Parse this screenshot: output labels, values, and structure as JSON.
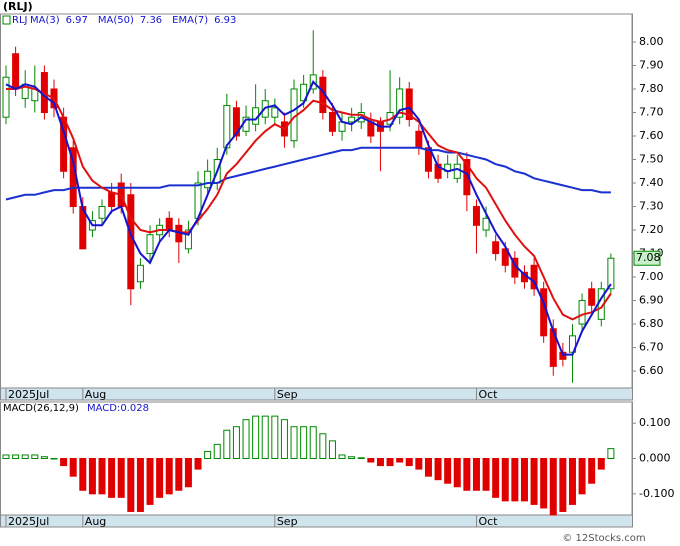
{
  "chart_data": [
    {
      "type": "candlestick",
      "title": "(RLJ)",
      "symbol": "RLJ",
      "open": [
        7.68,
        7.95,
        7.76,
        7.75,
        7.87,
        7.8,
        7.68,
        7.55,
        7.3,
        7.2,
        7.25,
        7.36,
        7.4,
        7.35,
        6.98,
        7.1,
        7.18,
        7.25,
        7.22,
        7.12,
        7.25,
        7.38,
        7.4,
        7.55,
        7.72,
        7.62,
        7.65,
        7.68,
        7.68,
        7.66,
        7.58,
        7.75,
        7.8,
        7.85,
        7.7,
        7.62,
        7.66,
        7.66,
        7.66,
        7.66,
        7.65,
        7.68,
        7.8,
        7.62,
        7.55,
        7.48,
        7.45,
        7.42,
        7.5,
        7.3,
        7.2,
        7.15,
        7.12,
        7.08,
        7.02,
        7.05,
        6.95,
        6.78,
        6.68,
        6.68,
        6.8,
        6.95,
        6.82,
        6.95
      ],
      "high": [
        7.9,
        7.98,
        7.88,
        7.9,
        7.9,
        7.84,
        7.72,
        7.58,
        7.34,
        7.28,
        7.33,
        7.4,
        7.44,
        7.4,
        7.08,
        7.22,
        7.25,
        7.28,
        7.25,
        7.24,
        7.45,
        7.5,
        7.55,
        7.78,
        7.75,
        7.73,
        7.82,
        7.8,
        7.76,
        7.7,
        7.84,
        7.86,
        8.05,
        7.88,
        7.74,
        7.7,
        7.72,
        7.74,
        7.7,
        7.68,
        7.88,
        7.85,
        7.83,
        7.65,
        7.58,
        7.52,
        7.52,
        7.52,
        7.53,
        7.33,
        7.3,
        7.18,
        7.15,
        7.11,
        7.05,
        7.08,
        6.98,
        6.82,
        6.72,
        6.8,
        6.93,
        6.98,
        6.98,
        7.1
      ],
      "low": [
        7.65,
        7.77,
        7.72,
        7.7,
        7.67,
        7.68,
        7.42,
        7.27,
        7.12,
        7.17,
        7.22,
        7.27,
        7.27,
        6.88,
        6.95,
        7.06,
        7.15,
        7.17,
        7.06,
        7.1,
        7.22,
        7.35,
        7.37,
        7.52,
        7.58,
        7.6,
        7.62,
        7.65,
        7.65,
        7.55,
        7.55,
        7.72,
        7.78,
        7.67,
        7.6,
        7.58,
        7.62,
        7.63,
        7.57,
        7.45,
        7.62,
        7.65,
        7.64,
        7.52,
        7.42,
        7.4,
        7.42,
        7.4,
        7.28,
        7.1,
        7.17,
        7.07,
        7.02,
        6.97,
        6.95,
        6.92,
        6.72,
        6.58,
        6.62,
        6.55,
        6.77,
        6.85,
        6.79,
        6.93
      ],
      "close": [
        7.85,
        7.8,
        7.82,
        7.8,
        7.7,
        7.72,
        7.45,
        7.3,
        7.12,
        7.24,
        7.3,
        7.3,
        7.3,
        6.95,
        7.05,
        7.18,
        7.22,
        7.2,
        7.15,
        7.2,
        7.4,
        7.45,
        7.5,
        7.73,
        7.6,
        7.68,
        7.72,
        7.75,
        7.72,
        7.6,
        7.8,
        7.82,
        7.86,
        7.7,
        7.62,
        7.66,
        7.68,
        7.7,
        7.6,
        7.62,
        7.7,
        7.8,
        7.67,
        7.55,
        7.45,
        7.42,
        7.48,
        7.48,
        7.35,
        7.22,
        7.25,
        7.1,
        7.05,
        7.0,
        6.98,
        6.95,
        6.75,
        6.62,
        6.65,
        6.75,
        6.9,
        6.88,
        6.95,
        7.08
      ],
      "series": [
        {
          "name": "MA(3)",
          "legend_value": 6.97,
          "color": "#1515d0",
          "values": [
            7.82,
            7.8,
            7.82,
            7.81,
            7.77,
            7.74,
            7.62,
            7.49,
            7.29,
            7.22,
            7.22,
            7.28,
            7.3,
            7.18,
            7.1,
            7.06,
            7.15,
            7.2,
            7.19,
            7.18,
            7.25,
            7.35,
            7.45,
            7.56,
            7.61,
            7.67,
            7.67,
            7.72,
            7.73,
            7.69,
            7.71,
            7.74,
            7.83,
            7.79,
            7.73,
            7.66,
            7.65,
            7.68,
            7.66,
            7.64,
            7.64,
            7.71,
            7.72,
            7.67,
            7.56,
            7.47,
            7.45,
            7.46,
            7.44,
            7.35,
            7.27,
            7.19,
            7.13,
            7.05,
            7.01,
            6.98,
            6.89,
            6.77,
            6.67,
            6.67,
            6.77,
            6.84,
            6.91,
            6.97
          ]
        },
        {
          "name": "MA(50)",
          "legend_value": 7.36,
          "color": "#1a30d0",
          "values": [
            7.33,
            7.34,
            7.35,
            7.35,
            7.36,
            7.37,
            7.37,
            7.38,
            7.38,
            7.38,
            7.38,
            7.38,
            7.38,
            7.38,
            7.38,
            7.38,
            7.38,
            7.39,
            7.39,
            7.39,
            7.39,
            7.4,
            7.4,
            7.42,
            7.43,
            7.44,
            7.45,
            7.46,
            7.47,
            7.48,
            7.49,
            7.5,
            7.51,
            7.52,
            7.53,
            7.54,
            7.54,
            7.55,
            7.55,
            7.55,
            7.55,
            7.55,
            7.55,
            7.55,
            7.54,
            7.54,
            7.53,
            7.53,
            7.52,
            7.51,
            7.5,
            7.48,
            7.47,
            7.45,
            7.44,
            7.42,
            7.41,
            7.4,
            7.39,
            7.38,
            7.37,
            7.37,
            7.36,
            7.36
          ]
        },
        {
          "name": "EMA(7)",
          "legend_value": 6.93,
          "color": "#e01010",
          "values": [
            7.8,
            7.8,
            7.81,
            7.8,
            7.78,
            7.76,
            7.68,
            7.59,
            7.47,
            7.41,
            7.38,
            7.36,
            7.35,
            7.25,
            7.2,
            7.19,
            7.2,
            7.2,
            7.19,
            7.19,
            7.24,
            7.29,
            7.35,
            7.44,
            7.48,
            7.53,
            7.58,
            7.62,
            7.65,
            7.63,
            7.68,
            7.71,
            7.75,
            7.74,
            7.71,
            7.7,
            7.69,
            7.69,
            7.67,
            7.66,
            7.67,
            7.7,
            7.69,
            7.66,
            7.61,
            7.56,
            7.54,
            7.53,
            7.48,
            7.42,
            7.38,
            7.31,
            7.24,
            7.18,
            7.13,
            7.09,
            7.0,
            6.91,
            6.84,
            6.82,
            6.84,
            6.85,
            6.87,
            6.93
          ]
        }
      ],
      "up_color": "#008800",
      "down_color": "#e00000",
      "xlim": [
        -0.625,
        65.2
      ],
      "xticks": [
        {
          "value": 0,
          "label": "2025Jul"
        },
        {
          "value": 8,
          "label": "Aug"
        },
        {
          "value": 28,
          "label": "Sep"
        },
        {
          "value": 49,
          "label": "Oct"
        }
      ],
      "ylim": [
        6.528,
        8.119
      ],
      "yticks": [
        {
          "value": 6.6,
          "label": "6.60"
        },
        {
          "value": 6.7,
          "label": "6.70"
        },
        {
          "value": 6.8,
          "label": "6.80"
        },
        {
          "value": 6.9,
          "label": "6.90"
        },
        {
          "value": 7.0,
          "label": "7.00"
        },
        {
          "value": 7.1,
          "label": "7.10"
        },
        {
          "value": 7.2,
          "label": "7.20"
        },
        {
          "value": 7.3,
          "label": "7.30"
        },
        {
          "value": 7.4,
          "label": "7.40"
        },
        {
          "value": 7.5,
          "label": "7.50"
        },
        {
          "value": 7.6,
          "label": "7.60"
        },
        {
          "value": 7.7,
          "label": "7.70"
        },
        {
          "value": 7.8,
          "label": "7.80"
        },
        {
          "value": 7.9,
          "label": "7.90"
        },
        {
          "value": 8.0,
          "label": "8.00"
        }
      ]
    },
    {
      "type": "bar",
      "title": "MACD(26,12,9)",
      "value_name": "MACD:",
      "values": [
        0.01,
        0.01,
        0.01,
        0.01,
        0.005,
        0.0,
        -0.02,
        -0.05,
        -0.09,
        -0.1,
        -0.1,
        -0.11,
        -0.11,
        -0.15,
        -0.15,
        -0.13,
        -0.11,
        -0.1,
        -0.09,
        -0.08,
        -0.03,
        0.02,
        0.04,
        0.08,
        0.09,
        0.11,
        0.12,
        0.12,
        0.12,
        0.11,
        0.09,
        0.09,
        0.09,
        0.07,
        0.05,
        0.01,
        0.005,
        0.002,
        -0.01,
        -0.02,
        -0.02,
        -0.01,
        -0.02,
        -0.03,
        -0.05,
        -0.06,
        -0.07,
        -0.08,
        -0.09,
        -0.09,
        -0.09,
        -0.11,
        -0.12,
        -0.12,
        -0.12,
        -0.13,
        -0.14,
        -0.16,
        -0.15,
        -0.13,
        -0.1,
        -0.07,
        -0.03,
        0.028
      ],
      "up_color": "#008800",
      "down_color": "#e00000",
      "xlim": [
        -0.625,
        65.2
      ],
      "xticks": [
        {
          "value": 0,
          "label": "2025Jul"
        },
        {
          "value": 8,
          "label": "Aug"
        },
        {
          "value": 28,
          "label": "Sep"
        },
        {
          "value": 49,
          "label": "Oct"
        }
      ],
      "ylim": [
        -0.16,
        0.16
      ],
      "yticks": [
        {
          "value": 0.1,
          "label": "0.100"
        },
        {
          "value": 0.0,
          "label": "0.000"
        },
        {
          "value": -0.1,
          "label": "-0.100"
        }
      ]
    }
  ],
  "footer": "© 12Stocks.com"
}
